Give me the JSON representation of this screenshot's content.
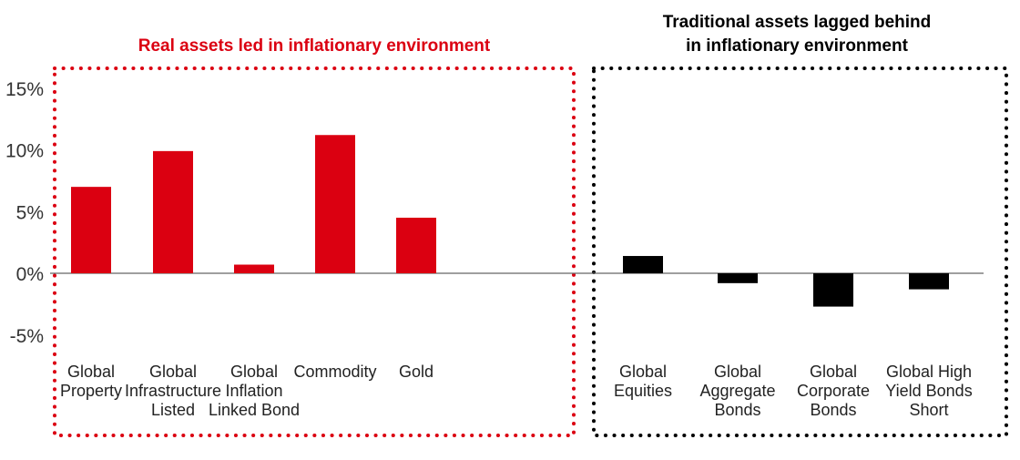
{
  "chart_data": {
    "type": "bar",
    "groups": [
      {
        "title": "Real assets led in inflationary environment",
        "color": "#DB0011",
        "categories": [
          [
            "Global",
            "Property"
          ],
          [
            "Global",
            "Infrastructure",
            "Listed"
          ],
          [
            "Global",
            "Inflation",
            "Linked Bond"
          ],
          [
            "Commodity"
          ],
          [
            "Gold"
          ]
        ],
        "values": [
          7.0,
          9.9,
          0.7,
          11.2,
          4.5
        ]
      },
      {
        "title": [
          "Traditional assets lagged behind",
          "in inflationary environment"
        ],
        "color": "#000000",
        "categories": [
          [
            "Global",
            "Equities"
          ],
          [
            "Global",
            "Aggregate",
            "Bonds"
          ],
          [
            "Global",
            "Corporate",
            "Bonds"
          ],
          [
            "Global High",
            "Yield Bonds",
            "Short"
          ]
        ],
        "values": [
          1.4,
          -0.8,
          -2.7,
          -1.3
        ]
      }
    ],
    "yticks": [
      "15%",
      "10%",
      "5%",
      "0%",
      "-5%"
    ],
    "ytick_values": [
      15,
      10,
      5,
      0,
      -5
    ],
    "ylim": [
      -5,
      15
    ],
    "grid": false,
    "legend": "none"
  }
}
